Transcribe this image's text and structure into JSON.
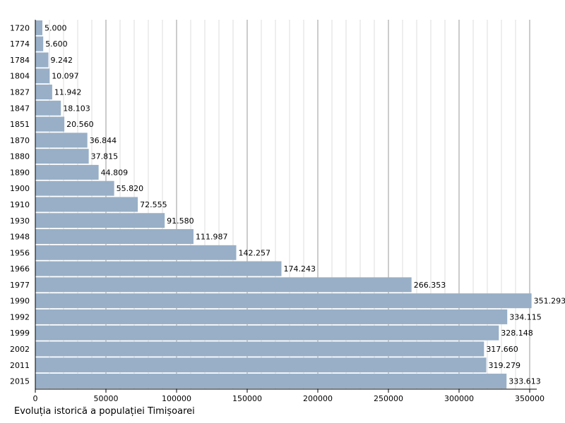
{
  "chart_data": {
    "type": "bar",
    "orientation": "horizontal",
    "title": "Evoluția istorică a populației Timișoarei",
    "categories": [
      "1720",
      "1774",
      "1784",
      "1804",
      "1827",
      "1847",
      "1851",
      "1870",
      "1880",
      "1890",
      "1900",
      "1910",
      "1930",
      "1948",
      "1956",
      "1966",
      "1977",
      "1990",
      "1992",
      "1999",
      "2002",
      "2011",
      "2015"
    ],
    "values": [
      5000,
      5600,
      9242,
      10097,
      11942,
      18103,
      20560,
      36844,
      37815,
      44809,
      55820,
      72555,
      91580,
      111987,
      142257,
      174243,
      266353,
      351293,
      334115,
      328148,
      317660,
      319279,
      333613
    ],
    "value_labels": [
      "5.000",
      "5.600",
      "9.242",
      "10.097",
      "11.942",
      "18.103",
      "20.560",
      "36.844",
      "37.815",
      "44.809",
      "55.820",
      "72.555",
      "91.580",
      "111.987",
      "142.257",
      "174.243",
      "266.353",
      "351.293",
      "334.115",
      "328.148",
      "317.660",
      "319.279",
      "333.613"
    ],
    "xlim": [
      0,
      355000
    ],
    "xticks": [
      0,
      50000,
      100000,
      150000,
      200000,
      250000,
      300000,
      350000
    ],
    "major_grid_step": 50000,
    "minor_grid_step": 10000,
    "xlabel": "",
    "ylabel": "",
    "bar_color": "#98afc7"
  }
}
